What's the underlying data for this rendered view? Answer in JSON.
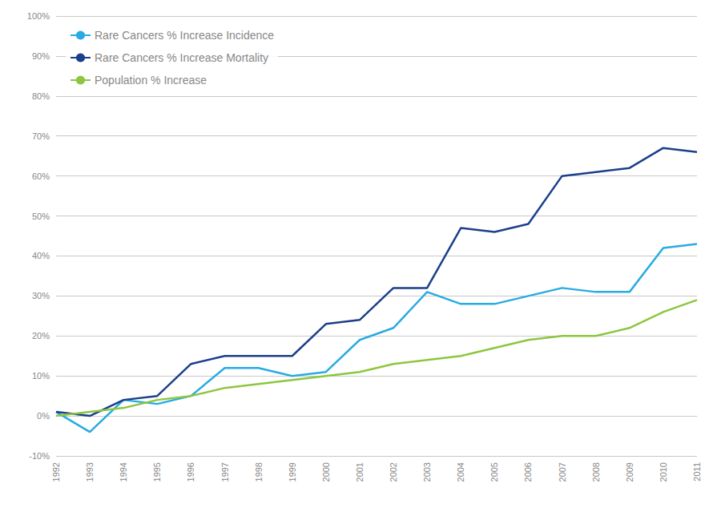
{
  "chart_data": {
    "type": "line",
    "x": [
      1992,
      1993,
      1994,
      1995,
      1996,
      1997,
      1998,
      1999,
      2000,
      2001,
      2002,
      2003,
      2004,
      2005,
      2006,
      2007,
      2008,
      2009,
      2010,
      2011
    ],
    "series": [
      {
        "name": "Rare Cancers % Increase Incidence",
        "color": "#29ABE2",
        "values": [
          1,
          -4,
          4,
          3,
          5,
          12,
          12,
          10,
          11,
          19,
          22,
          31,
          28,
          28,
          30,
          32,
          31,
          31,
          42,
          43
        ]
      },
      {
        "name": "Rare Cancers % Increase Mortality",
        "color": "#1B3F8B",
        "values": [
          1,
          0,
          4,
          5,
          13,
          15,
          15,
          15,
          23,
          24,
          32,
          32,
          47,
          46,
          48,
          60,
          61,
          62,
          67,
          66
        ]
      },
      {
        "name": "Population % Increase",
        "color": "#8DC63F",
        "values": [
          0,
          1,
          2,
          4,
          5,
          7,
          8,
          9,
          10,
          11,
          13,
          14,
          15,
          17,
          19,
          20,
          20,
          22,
          26,
          29
        ]
      }
    ],
    "xlim": [
      1992,
      2011
    ],
    "xticks": [
      1992,
      1993,
      1994,
      1995,
      1996,
      1997,
      1998,
      1999,
      2000,
      2001,
      2002,
      2003,
      2004,
      2005,
      2006,
      2007,
      2008,
      2009,
      2010,
      2011
    ],
    "ylim": [
      -10,
      100
    ],
    "yticks": [
      {
        "value": -10,
        "label": "-10%"
      },
      {
        "value": 0,
        "label": "0%"
      },
      {
        "value": 10,
        "label": "10%"
      },
      {
        "value": 20,
        "label": "20%"
      },
      {
        "value": 30,
        "label": "30%"
      },
      {
        "value": 40,
        "label": "40%"
      },
      {
        "value": 50,
        "label": "50%"
      },
      {
        "value": 60,
        "label": "60%"
      },
      {
        "value": 70,
        "label": "70%"
      },
      {
        "value": 80,
        "label": "80%"
      },
      {
        "value": 90,
        "label": "90%"
      },
      {
        "value": 100,
        "label": "100%"
      }
    ],
    "grid": true,
    "legend": "upper left"
  }
}
